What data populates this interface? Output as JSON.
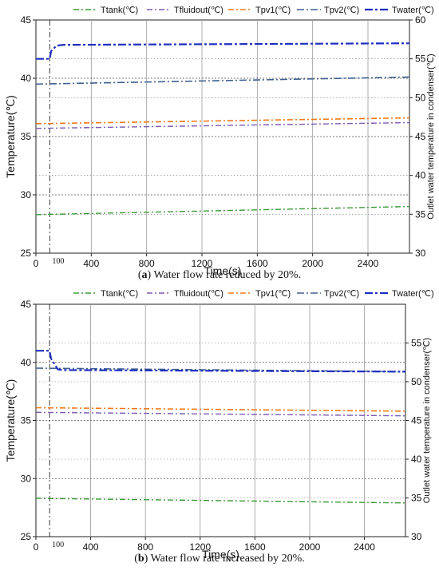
{
  "captions": [
    {
      "letter": "a",
      "text": " Water flow rate reduced by 20%."
    },
    {
      "letter": "b",
      "text": " Water flow rate increased by 20%."
    }
  ],
  "colors": {
    "Ttank": "#3a9a35",
    "Tfluidout": "#7b5ab0",
    "Tpv1": "#f07a1a",
    "Tpv2": "#3e5f8f",
    "Twater": "#1f2fbf"
  },
  "chart_data": [
    {
      "type": "line",
      "title": "",
      "xlabel": "Time(s)",
      "ylabel": "Temperature(℃)",
      "ylabel_right": "Outlet water temperature in condenser(℃)",
      "xlim": [
        0,
        2700
      ],
      "ylim": [
        25,
        45
      ],
      "ylim_right": [
        30,
        60
      ],
      "x_ticks": [
        "0",
        "400",
        "800",
        "1200",
        "1600",
        "2000",
        "2400"
      ],
      "y_ticks": [
        "25",
        "30",
        "35",
        "40",
        "45"
      ],
      "y_ticks_right": [
        "30",
        "35",
        "40",
        "45",
        "50",
        "55",
        "60"
      ],
      "marker_x": 100,
      "marker_label": "100",
      "grid": true,
      "legend": "top",
      "series": [
        {
          "key": "Ttank",
          "name": "Ttank(℃)",
          "axis": "left",
          "x": [
            0,
            2700
          ],
          "y": [
            28.3,
            29.0
          ]
        },
        {
          "key": "Tfluidout",
          "name": "Tfluidout(℃)",
          "axis": "left",
          "x": [
            0,
            2700
          ],
          "y": [
            35.7,
            36.2
          ]
        },
        {
          "key": "Tpv1",
          "name": "Tpv1(℃)",
          "axis": "left",
          "x": [
            0,
            2700
          ],
          "y": [
            36.1,
            36.6
          ]
        },
        {
          "key": "Tpv2",
          "name": "Tpv2(℃)",
          "axis": "left",
          "x": [
            0,
            2700
          ],
          "y": [
            39.5,
            40.1
          ]
        },
        {
          "key": "Twater",
          "name": "Twater(℃)",
          "axis": "right",
          "x": [
            0,
            100,
            110,
            150,
            200,
            300,
            2700
          ],
          "y": [
            55.0,
            55.0,
            56.0,
            56.7,
            56.8,
            56.8,
            57.0
          ]
        }
      ]
    },
    {
      "type": "line",
      "title": "",
      "xlabel": "Time(s)",
      "ylabel": "Temperature(℃)",
      "ylabel_right": "Outlet water temperature in condenser(℃)",
      "xlim": [
        0,
        2700
      ],
      "ylim": [
        25,
        45
      ],
      "ylim_right": [
        30,
        60
      ],
      "x_ticks": [
        "0",
        "400",
        "800",
        "1200",
        "1600",
        "2000",
        "2400"
      ],
      "y_ticks": [
        "25",
        "30",
        "35",
        "40",
        "45"
      ],
      "y_ticks_right": [
        "30",
        "35",
        "40",
        "45",
        "50",
        "55"
      ],
      "marker_x": 100,
      "marker_label": "100",
      "grid": true,
      "legend": "top",
      "series": [
        {
          "key": "Ttank",
          "name": "Ttank(℃)",
          "axis": "left",
          "x": [
            0,
            2700
          ],
          "y": [
            28.3,
            27.9
          ]
        },
        {
          "key": "Tfluidout",
          "name": "Tfluidout(℃)",
          "axis": "left",
          "x": [
            0,
            2700
          ],
          "y": [
            35.7,
            35.4
          ]
        },
        {
          "key": "Tpv1",
          "name": "Tpv1(℃)",
          "axis": "left",
          "x": [
            0,
            2700
          ],
          "y": [
            36.1,
            35.8
          ]
        },
        {
          "key": "Tpv2",
          "name": "Tpv2(℃)",
          "axis": "left",
          "x": [
            0,
            2700
          ],
          "y": [
            39.5,
            39.2
          ]
        },
        {
          "key": "Twater",
          "name": "Twater(℃)",
          "axis": "right",
          "x": [
            0,
            100,
            110,
            160,
            200,
            2700
          ],
          "y": [
            54.0,
            54.0,
            53.0,
            51.6,
            51.5,
            51.3
          ]
        }
      ]
    }
  ]
}
